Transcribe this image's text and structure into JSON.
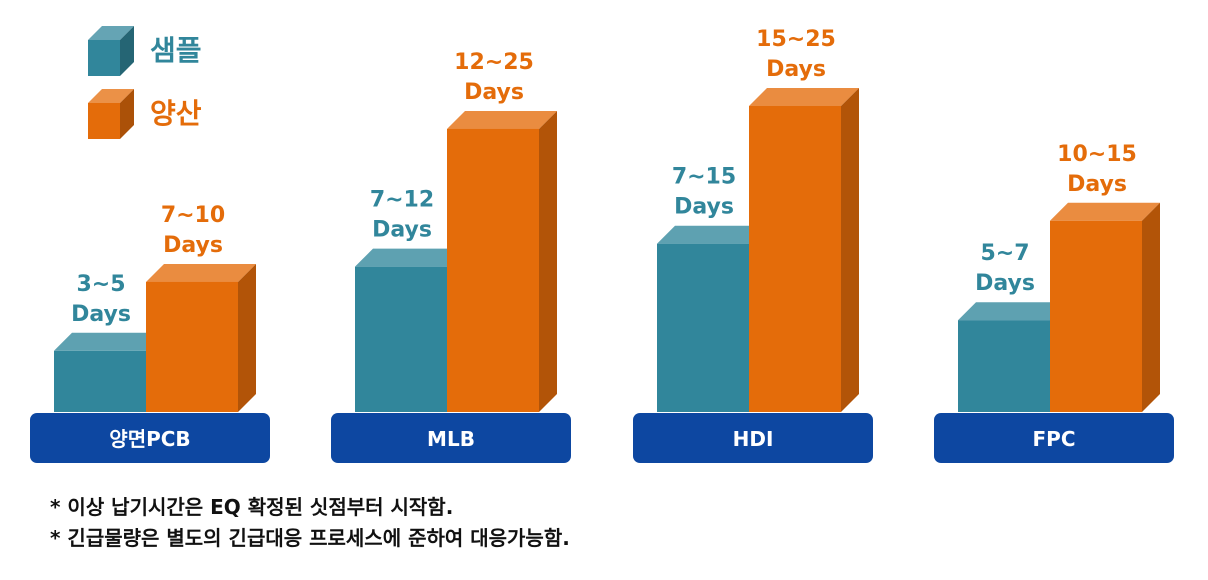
{
  "chart_data": {
    "type": "bar",
    "categories": [
      "양면PCB",
      "MLB",
      "HDI",
      "FPC"
    ],
    "series": [
      {
        "name": "샘플",
        "color": "#31869B",
        "values": [
          4,
          9.5,
          11,
          6
        ],
        "labels": [
          [
            "3~5",
            "Days"
          ],
          [
            "7~12",
            "Days"
          ],
          [
            "7~15",
            "Days"
          ],
          [
            "5~7",
            "Days"
          ]
        ]
      },
      {
        "name": "양산",
        "color": "#E46C0A",
        "values": [
          8.5,
          18.5,
          20,
          12.5
        ],
        "labels": [
          [
            "7~10",
            "Days"
          ],
          [
            "12~25",
            "Days"
          ],
          [
            "15~25",
            "Days"
          ],
          [
            "10~15",
            "Days"
          ]
        ]
      }
    ],
    "category_box_color": "#0D47A1",
    "legend_position": "top-left",
    "grid": false,
    "ylim": [
      0,
      26
    ]
  },
  "notes": [
    "* 이상 납기시간은 EQ 확정된 싯점부터 시작함.",
    "* 긴급물량은 별도의 긴급대응 프로세스에 준하여 대응가능함."
  ]
}
